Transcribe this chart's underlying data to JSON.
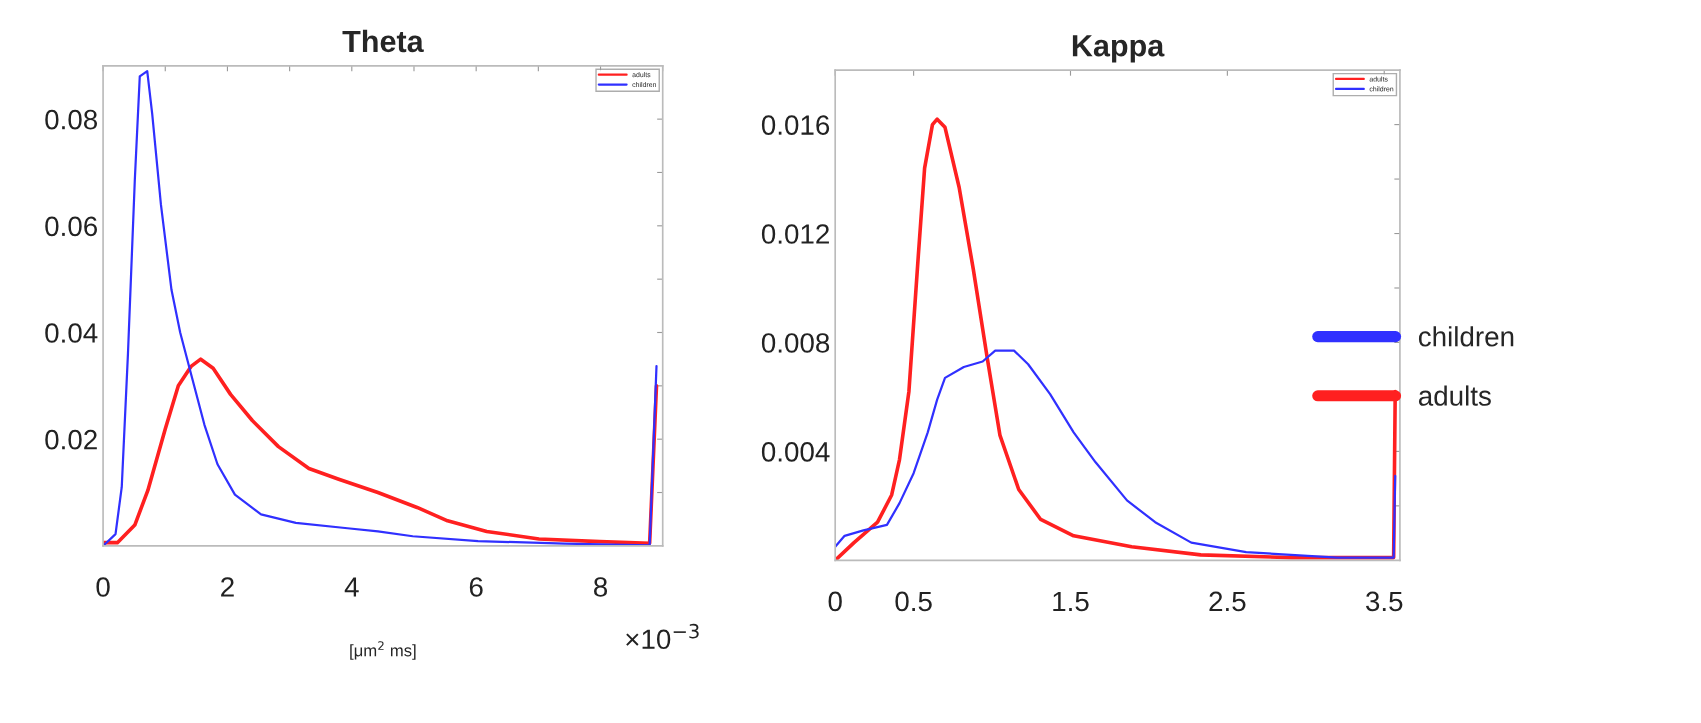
{
  "chart_data": [
    {
      "type": "line",
      "title": "Theta",
      "xlabel": "[μm$^{2}$ ms]",
      "annotations": [
        "×10$^{−3}$"
      ],
      "xlim": [
        0,
        9
      ],
      "ylim": [
        0,
        0.09
      ],
      "xticks": [
        0,
        {
          "value": 1,
          "label": null
        },
        2,
        {
          "value": 3,
          "label": null
        },
        4,
        {
          "value": 5,
          "label": null
        },
        6,
        {
          "value": 7,
          "label": null
        },
        8,
        {
          "value": 9,
          "label": null
        }
      ],
      "yticks": [
        {
          "value": 0.01,
          "label": null
        },
        0.02,
        {
          "value": 0.03,
          "label": null
        },
        0.04,
        {
          "value": 0.05,
          "label": null
        },
        0.06,
        {
          "value": 0.07,
          "label": null
        },
        0.08
      ],
      "legend": "top right",
      "grid": false,
      "series": [
        {
          "name": "adults",
          "color": "#ff2020",
          "x": [
            0,
            0.23,
            0.51,
            0.72,
            1.0,
            1.21,
            1.42,
            1.57,
            1.77,
            2.05,
            2.4,
            2.82,
            3.31,
            3.79,
            4.42,
            5.05,
            5.54,
            6.17,
            7.01,
            7.99,
            8.79,
            8.9
          ],
          "values": [
            0.0006,
            0.0006,
            0.0039,
            0.0104,
            0.0219,
            0.03,
            0.0337,
            0.035,
            0.0333,
            0.0284,
            0.0235,
            0.0186,
            0.0145,
            0.0125,
            0.01,
            0.0072,
            0.0047,
            0.0027,
            0.0013,
            0.0008,
            0.0005,
            0.03
          ]
        },
        {
          "name": "children",
          "color": "#3030ff",
          "x": [
            0,
            0.2,
            0.3,
            0.4,
            0.51,
            0.59,
            0.71,
            0.79,
            0.93,
            1.1,
            1.24,
            1.42,
            1.63,
            1.84,
            2.12,
            2.54,
            3.1,
            3.93,
            4.42,
            4.98,
            6.03,
            7.43,
            8.79,
            8.9
          ],
          "values": [
            0,
            0.0022,
            0.011,
            0.036,
            0.0685,
            0.088,
            0.089,
            0.081,
            0.064,
            0.048,
            0.04,
            0.032,
            0.0227,
            0.0153,
            0.0096,
            0.0059,
            0.0043,
            0.0033,
            0.0027,
            0.0018,
            0.0009,
            0.0004,
            0.0001,
            0.0337
          ]
        }
      ]
    },
    {
      "type": "line",
      "title": "Kappa",
      "xlim": [
        0,
        3.6
      ],
      "ylim": [
        0,
        0.018
      ],
      "xticks": [
        0,
        0.5,
        1.5,
        2.5,
        3.5
      ],
      "yticks": [
        {
          "value": 0.002,
          "label": null
        },
        0.004,
        {
          "value": 0.006,
          "label": null
        },
        0.008,
        {
          "value": 0.01,
          "label": null
        },
        0.012,
        {
          "value": 0.014,
          "label": null
        },
        0.016
      ],
      "legend": "top right",
      "grid": false,
      "series": [
        {
          "name": "adults",
          "color": "#ff2020",
          "x": [
            0,
            0.12,
            0.27,
            0.36,
            0.41,
            0.47,
            0.53,
            0.57,
            0.62,
            0.65,
            0.7,
            0.79,
            0.88,
            0.97,
            1.05,
            1.17,
            1.31,
            1.52,
            1.89,
            2.33,
            2.91,
            3.56,
            3.57
          ],
          "values": [
            0,
            0.00065,
            0.0014,
            0.0024,
            0.0037,
            0.0062,
            0.0112,
            0.0144,
            0.016,
            0.0162,
            0.0159,
            0.0137,
            0.0107,
            0.0074,
            0.0046,
            0.0026,
            0.0015,
            0.0009,
            0.0005,
            0.0002,
            0.0001,
            0.0001,
            0.0062
          ]
        },
        {
          "name": "children",
          "color": "#3030ff",
          "x": [
            0,
            0.06,
            0.18,
            0.33,
            0.41,
            0.5,
            0.59,
            0.65,
            0.7,
            0.82,
            0.94,
            1.02,
            1.14,
            1.23,
            1.37,
            1.52,
            1.66,
            1.86,
            2.04,
            2.27,
            2.62,
            3.2,
            3.56,
            3.57
          ],
          "values": [
            0.0005,
            0.0009,
            0.0011,
            0.0013,
            0.0021,
            0.0032,
            0.0047,
            0.0059,
            0.0067,
            0.0071,
            0.0073,
            0.0077,
            0.0077,
            0.0072,
            0.0061,
            0.0047,
            0.0036,
            0.0022,
            0.0014,
            0.00065,
            0.0003,
            0.0001,
            0.0001,
            0.0031
          ]
        }
      ]
    }
  ]
}
